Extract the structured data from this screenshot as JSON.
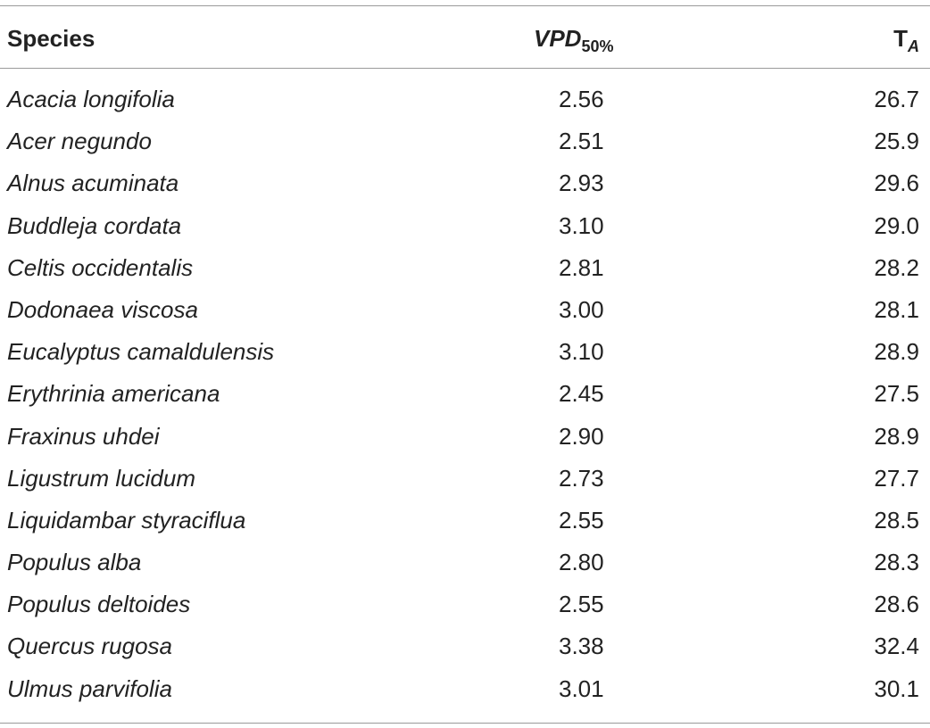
{
  "table": {
    "headers": {
      "species": "Species",
      "vpd_main": "VPD",
      "vpd_sub": "50%",
      "ta_main": "T",
      "ta_sub": "A"
    },
    "rows": [
      {
        "species": "Acacia longifolia",
        "vpd50": "2.56",
        "ta": "26.7"
      },
      {
        "species": "Acer negundo",
        "vpd50": "2.51",
        "ta": "25.9"
      },
      {
        "species": "Alnus acuminata",
        "vpd50": "2.93",
        "ta": "29.6"
      },
      {
        "species": "Buddleja cordata",
        "vpd50": "3.10",
        "ta": "29.0"
      },
      {
        "species": "Celtis occidentalis",
        "vpd50": "2.81",
        "ta": "28.2"
      },
      {
        "species": "Dodonaea viscosa",
        "vpd50": "3.00",
        "ta": "28.1"
      },
      {
        "species": "Eucalyptus camaldulensis",
        "vpd50": "3.10",
        "ta": "28.9"
      },
      {
        "species": "Erythrinia americana",
        "vpd50": "2.45",
        "ta": "27.5"
      },
      {
        "species": "Fraxinus uhdei",
        "vpd50": "2.90",
        "ta": "28.9"
      },
      {
        "species": "Ligustrum lucidum",
        "vpd50": "2.73",
        "ta": "27.7"
      },
      {
        "species": "Liquidambar styraciflua",
        "vpd50": "2.55",
        "ta": "28.5"
      },
      {
        "species": "Populus alba",
        "vpd50": "2.80",
        "ta": "28.3"
      },
      {
        "species": "Populus deltoides",
        "vpd50": "2.55",
        "ta": "28.6"
      },
      {
        "species": "Quercus rugosa",
        "vpd50": "3.38",
        "ta": "32.4"
      },
      {
        "species": "Ulmus parvifolia",
        "vpd50": "3.01",
        "ta": "30.1"
      }
    ]
  }
}
